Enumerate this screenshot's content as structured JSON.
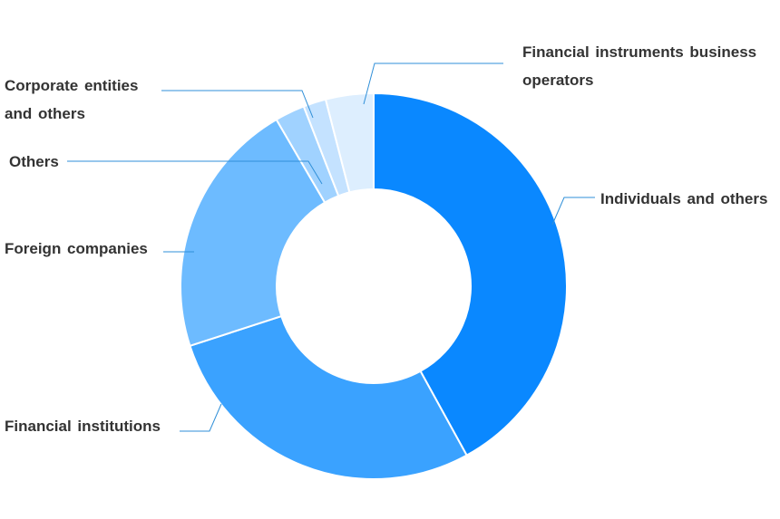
{
  "chart_data": {
    "type": "pie",
    "donut": true,
    "title": "",
    "legend": "none",
    "categories": [
      "Individuals and others",
      "Financial institutions",
      "Foreign companies",
      "Others",
      "Corporate entities and others",
      "Financial instruments business operators"
    ],
    "values": [
      42.0,
      28.0,
      21.6,
      2.5,
      1.9,
      4.0
    ],
    "colors": [
      "#0a88ff",
      "#3aa2ff",
      "#6dbbff",
      "#a0d2ff",
      "#c4e2ff",
      "#ddeefe"
    ],
    "labels": {
      "individuals": "Individuals and others",
      "financial_institutions": "Financial institutions",
      "foreign_companies": "Foreign companies",
      "others": "Others",
      "corporate": "Corporate entities\nand others",
      "fibo": "Financial instruments business\noperators"
    }
  }
}
